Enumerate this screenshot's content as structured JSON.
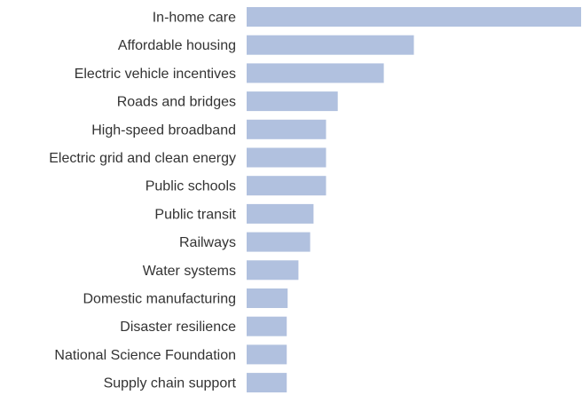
{
  "chart_data": {
    "type": "bar",
    "orientation": "horizontal",
    "categories": [
      "In-home care",
      "Affordable housing",
      "Electric vehicle incentives",
      "Roads and bridges",
      "High-speed broadband",
      "Electric grid and clean energy",
      "Public schools",
      "Public transit",
      "Railways",
      "Water systems",
      "Domestic manufacturing",
      "Disaster resilience",
      "National Science Foundation",
      "Supply chain support"
    ],
    "values": [
      400,
      200,
      164,
      109,
      95,
      95,
      95,
      80,
      76,
      62,
      49,
      48,
      48,
      48
    ],
    "xlim": [
      0,
      400
    ],
    "grid": false,
    "legend": "none",
    "title": "",
    "xlabel": "",
    "ylabel": "",
    "bar_color": "#b1c1df",
    "label_color": "#333333"
  }
}
